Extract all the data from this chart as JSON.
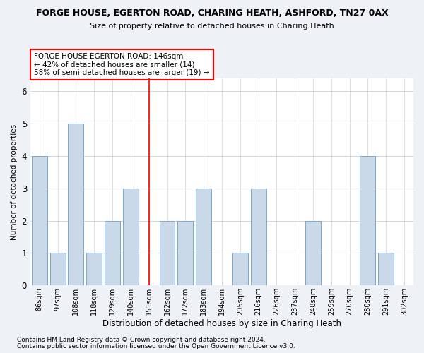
{
  "title": "FORGE HOUSE, EGERTON ROAD, CHARING HEATH, ASHFORD, TN27 0AX",
  "subtitle": "Size of property relative to detached houses in Charing Heath",
  "xlabel": "Distribution of detached houses by size in Charing Heath",
  "ylabel": "Number of detached properties",
  "categories": [
    "86sqm",
    "97sqm",
    "108sqm",
    "118sqm",
    "129sqm",
    "140sqm",
    "151sqm",
    "162sqm",
    "172sqm",
    "183sqm",
    "194sqm",
    "205sqm",
    "216sqm",
    "226sqm",
    "237sqm",
    "248sqm",
    "259sqm",
    "270sqm",
    "280sqm",
    "291sqm",
    "302sqm"
  ],
  "values": [
    4,
    1,
    5,
    1,
    2,
    3,
    0,
    2,
    2,
    3,
    0,
    1,
    3,
    0,
    0,
    2,
    0,
    0,
    4,
    1,
    0
  ],
  "bar_color": "#c9d9ea",
  "bar_edge_color": "#7aaac8",
  "ref_line_index": 6,
  "annotation_title": "FORGE HOUSE EGERTON ROAD: 146sqm",
  "annotation_line1": "← 42% of detached houses are smaller (14)",
  "annotation_line2": "58% of semi-detached houses are larger (19) →",
  "ylim_min": 0,
  "ylim_max": 6.4,
  "yticks": [
    0,
    1,
    2,
    3,
    4,
    5,
    6
  ],
  "footnote1": "Contains HM Land Registry data © Crown copyright and database right 2024.",
  "footnote2": "Contains public sector information licensed under the Open Government Licence v3.0.",
  "background_color": "#eef2f7",
  "plot_background": "#ffffff"
}
